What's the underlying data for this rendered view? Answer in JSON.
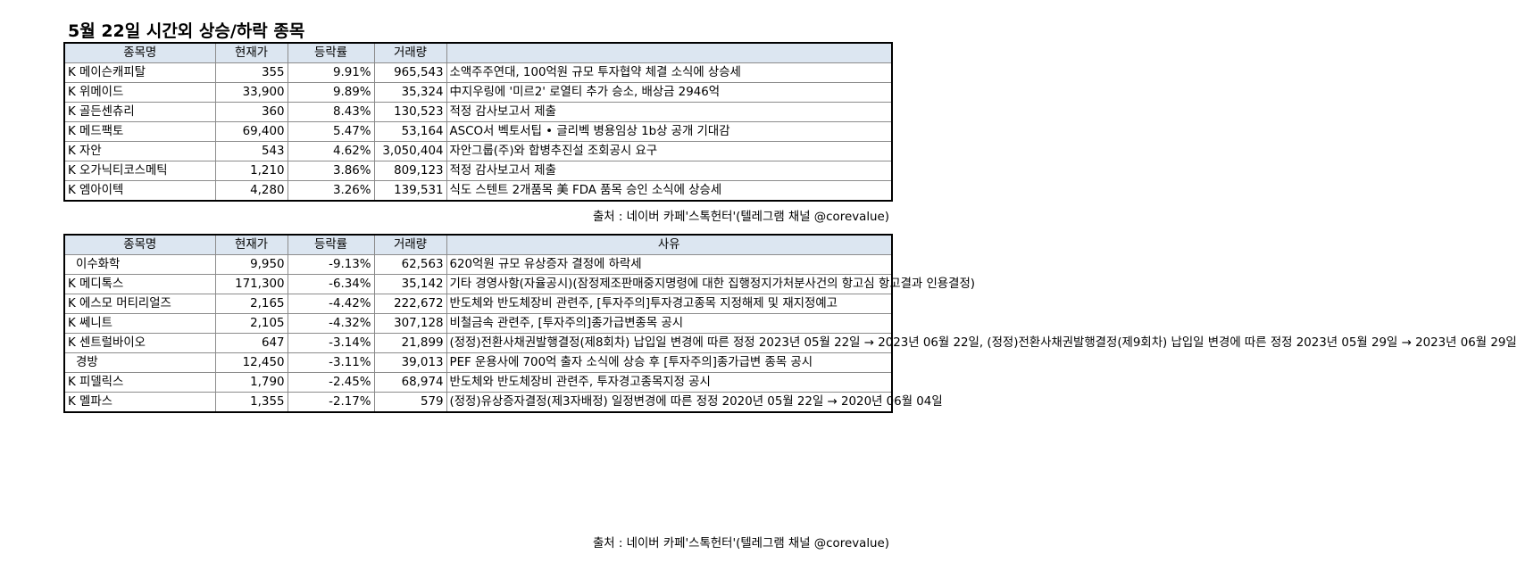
{
  "title": "5월 22일  시간외 상승/하락 종목",
  "columns": {
    "name": "종목명",
    "price": "현재가",
    "change": "등락률",
    "volume": "거래량",
    "reason": "사유"
  },
  "gainers": [
    {
      "name": "K 메이슨캐피탈",
      "price": "355",
      "change": "9.91%",
      "volume": "965,543",
      "reason": "소액주주연대, 100억원 규모 투자협약 체결 소식에 상승세"
    },
    {
      "name": "K 위메이드",
      "price": "33,900",
      "change": "9.89%",
      "volume": "35,324",
      "reason": "中지우링에 '미르2' 로열티 추가 승소, 배상금 2946억"
    },
    {
      "name": "K 골든센츄리",
      "price": "360",
      "change": "8.43%",
      "volume": "130,523",
      "reason": "적정 감사보고서 제출"
    },
    {
      "name": "K 메드팩토",
      "price": "69,400",
      "change": "5.47%",
      "volume": "53,164",
      "reason": "ASCO서 벡토서팁 • 글리벡 병용임상 1b상 공개 기대감"
    },
    {
      "name": "K 자안",
      "price": "543",
      "change": "4.62%",
      "volume": "3,050,404",
      "reason": "자안그룹(주)와 합병추진설 조회공시 요구"
    },
    {
      "name": "K 오가닉티코스메틱",
      "price": "1,210",
      "change": "3.86%",
      "volume": "809,123",
      "reason": "적정 감사보고서 제출"
    },
    {
      "name": "K 엠아이텍",
      "price": "4,280",
      "change": "3.26%",
      "volume": "139,531",
      "reason": "식도 스텐트 2개품목 美 FDA 품목 승인 소식에 상승세"
    }
  ],
  "source1": "출처 : 네이버 카페'스톡헌터'(텔레그램 채널 @corevalue)",
  "losers": [
    {
      "name": "이수화학",
      "indent": true,
      "price": "9,950",
      "change": "-9.13%",
      "volume": "62,563",
      "reason": "620억원 규모 유상증자 결정에 하락세"
    },
    {
      "name": "K 메디톡스",
      "price": "171,300",
      "change": "-6.34%",
      "volume": "35,142",
      "reason": "기타 경영사항(자율공시)(잠정제조판매중지명령에 대한 집행정지가처분사건의 항고심 항고결과 인용결정)"
    },
    {
      "name": "K 에스모 머티리얼즈",
      "price": "2,165",
      "change": "-4.42%",
      "volume": "222,672",
      "reason": "반도체와 반도체장비 관련주, [투자주의]투자경고종목 지정해제 및 재지정예고"
    },
    {
      "name": "K 쎄니트",
      "price": "2,105",
      "change": "-4.32%",
      "volume": "307,128",
      "reason": "비철금속 관련주, [투자주의]종가급변종목 공시"
    },
    {
      "name": "K 센트럴바이오",
      "price": "647",
      "change": "-3.14%",
      "volume": "21,899",
      "reason": "(정정)전환사채권발행결정(제8회차) 납입일 변경에 따른 정정 2023년 05월 22일 → 2023년 06월 22일, (정정)전환사채권발행결정(제9회차) 납입일 변경에 따른 정정 2023년 05월 29일 → 2023년 06월 29일"
    },
    {
      "name": "경방",
      "indent": true,
      "price": "12,450",
      "change": "-3.11%",
      "volume": "39,013",
      "reason": "PEF 운용사에 700억 출자 소식에 상승 후 [투자주의]종가급변 종목 공시"
    },
    {
      "name": "K 피델릭스",
      "price": "1,790",
      "change": "-2.45%",
      "volume": "68,974",
      "reason": "반도체와 반도체장비 관련주, 투자경고종목지정 공시"
    },
    {
      "name": "K 멜파스",
      "price": "1,355",
      "change": "-2.17%",
      "volume": "579",
      "reason": "(정정)유상증자결정(제3자배정) 일정변경에 따른 정정 2020년 05월 22일 → 2020년 06월 04일"
    }
  ],
  "source2": "출처 : 네이버 카페'스톡헌터'(텔레그램 채널 @corevalue)"
}
